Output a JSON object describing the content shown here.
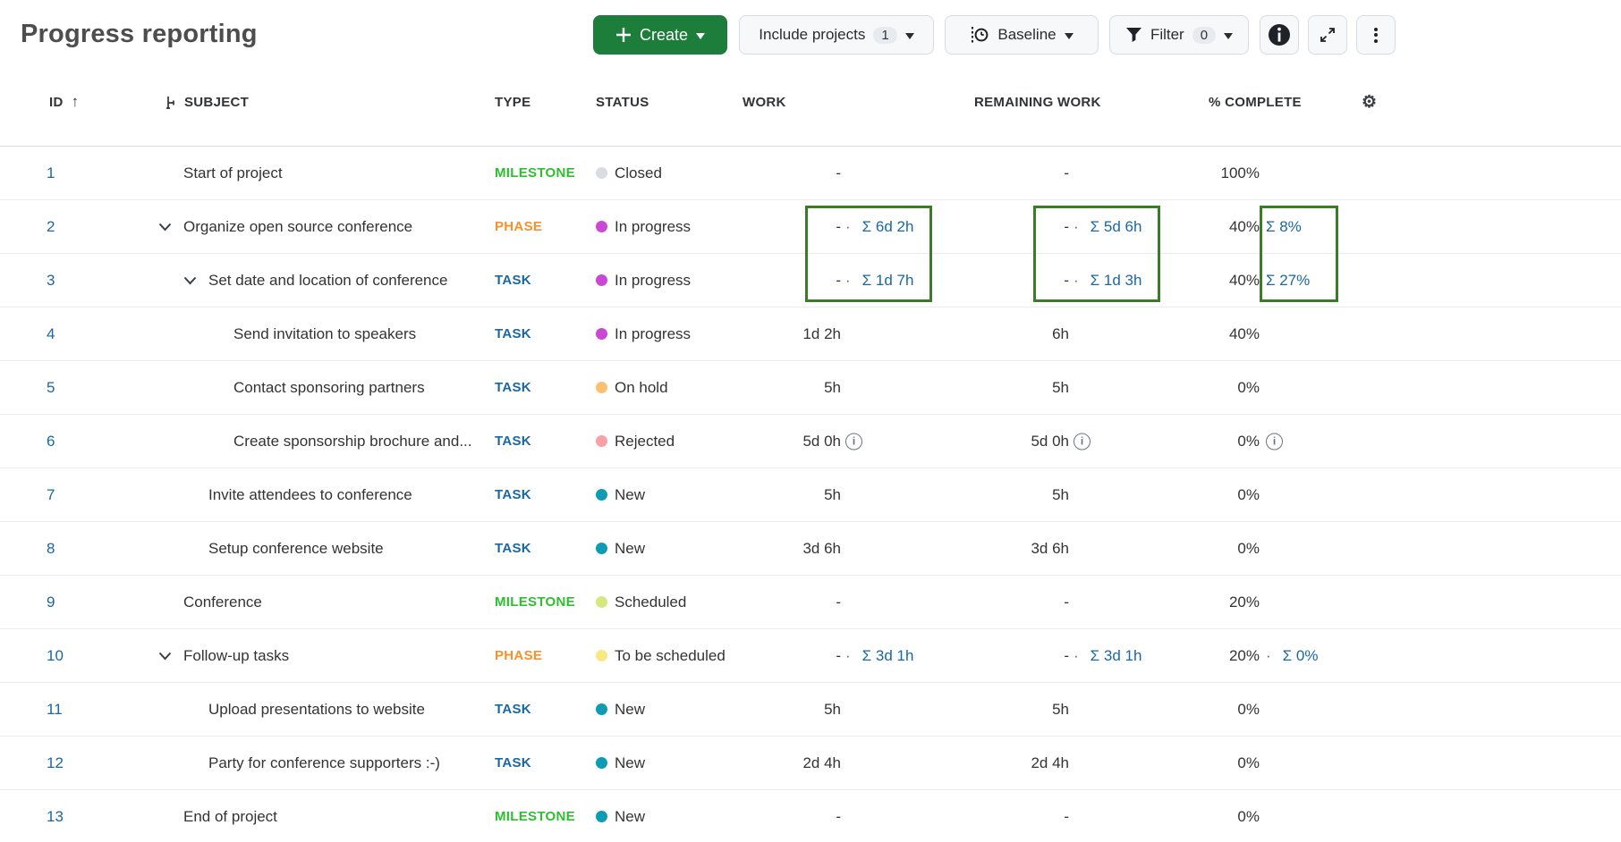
{
  "page": {
    "title": "Progress reporting"
  },
  "toolbar": {
    "create_label": "Create",
    "include_projects_label": "Include projects",
    "include_projects_badge": "1",
    "baseline_label": "Baseline",
    "filter_label": "Filter",
    "filter_badge": "0"
  },
  "table": {
    "columns": [
      "ID",
      "SUBJECT",
      "TYPE",
      "STATUS",
      "WORK",
      "REMAINING WORK",
      "% COMPLETE"
    ],
    "rows": [
      {
        "id": "1",
        "subject": "Start of project",
        "indent": 0,
        "chevron": false,
        "type": "MILESTONE",
        "type_color": "#2fbe2f",
        "status": "Closed",
        "status_color": "#d9dde2",
        "work": {
          "base": "-"
        },
        "remaining": {
          "base": "-"
        },
        "percent": {
          "base": "100%"
        }
      },
      {
        "id": "2",
        "subject": "Organize open source conference",
        "indent": 0,
        "chevron": true,
        "type": "PHASE",
        "type_color": "#f7912b",
        "status": "In progress",
        "status_color": "#cb48d6",
        "work": {
          "base": "-",
          "sep": true,
          "sum": "Σ 6d 2h"
        },
        "remaining": {
          "base": "-",
          "sep": true,
          "sum": "Σ 5d 6h"
        },
        "percent": {
          "base": "40%",
          "sep": false,
          "sum": "Σ 8%"
        }
      },
      {
        "id": "3",
        "subject": "Set date and location of conference",
        "indent": 1,
        "chevron": true,
        "type": "TASK",
        "type_color": "#1a67a3",
        "status": "In progress",
        "status_color": "#cb48d6",
        "work": {
          "base": "-",
          "sep": true,
          "sum": "Σ 1d 7h"
        },
        "remaining": {
          "base": "-",
          "sep": true,
          "sum": "Σ 1d 3h"
        },
        "percent": {
          "base": "40%",
          "sep": false,
          "sum": "Σ 27%"
        }
      },
      {
        "id": "4",
        "subject": "Send invitation to speakers",
        "indent": 2,
        "chevron": false,
        "type": "TASK",
        "type_color": "#1a67a3",
        "status": "In progress",
        "status_color": "#cb48d6",
        "work": {
          "base": "1d 2h"
        },
        "remaining": {
          "base": "6h"
        },
        "percent": {
          "base": "40%"
        }
      },
      {
        "id": "5",
        "subject": "Contact sponsoring partners",
        "indent": 2,
        "chevron": false,
        "type": "TASK",
        "type_color": "#1a67a3",
        "status": "On hold",
        "status_color": "#fbc072",
        "work": {
          "base": "5h"
        },
        "remaining": {
          "base": "5h"
        },
        "percent": {
          "base": "0%"
        }
      },
      {
        "id": "6",
        "subject": "Create sponsorship brochure and...",
        "indent": 2,
        "chevron": false,
        "type": "TASK",
        "type_color": "#1a67a3",
        "status": "Rejected",
        "status_color": "#f8a0a5",
        "work": {
          "base": "5d 0h",
          "info": true
        },
        "remaining": {
          "base": "5d 0h",
          "info": true
        },
        "percent": {
          "base": "0%",
          "info": true
        }
      },
      {
        "id": "7",
        "subject": "Invite attendees to conference",
        "indent": 1,
        "chevron": false,
        "type": "TASK",
        "type_color": "#1a67a3",
        "status": "New",
        "status_color": "#0d9cb4",
        "work": {
          "base": "5h"
        },
        "remaining": {
          "base": "5h"
        },
        "percent": {
          "base": "0%"
        }
      },
      {
        "id": "8",
        "subject": "Setup conference website",
        "indent": 1,
        "chevron": false,
        "type": "TASK",
        "type_color": "#1a67a3",
        "status": "New",
        "status_color": "#0d9cb4",
        "work": {
          "base": "3d 6h"
        },
        "remaining": {
          "base": "3d 6h"
        },
        "percent": {
          "base": "0%"
        }
      },
      {
        "id": "9",
        "subject": "Conference",
        "indent": 0,
        "chevron": false,
        "type": "MILESTONE",
        "type_color": "#2fbe2f",
        "status": "Scheduled",
        "status_color": "#d4e87e",
        "work": {
          "base": "-"
        },
        "remaining": {
          "base": "-"
        },
        "percent": {
          "base": "20%"
        }
      },
      {
        "id": "10",
        "subject": "Follow-up tasks",
        "indent": 0,
        "chevron": true,
        "type": "PHASE",
        "type_color": "#f7912b",
        "status": "To be scheduled",
        "status_color": "#f9e783",
        "work": {
          "base": "-",
          "sep": true,
          "sum": "Σ 3d 1h"
        },
        "remaining": {
          "base": "-",
          "sep": true,
          "sum": "Σ 3d 1h"
        },
        "percent": {
          "base": "20%",
          "sep": true,
          "sum": "Σ 0%"
        }
      },
      {
        "id": "11",
        "subject": "Upload presentations to website",
        "indent": 1,
        "chevron": false,
        "type": "TASK",
        "type_color": "#1a67a3",
        "status": "New",
        "status_color": "#0d9cb4",
        "work": {
          "base": "5h"
        },
        "remaining": {
          "base": "5h"
        },
        "percent": {
          "base": "0%"
        }
      },
      {
        "id": "12",
        "subject": "Party for conference supporters :-)",
        "indent": 1,
        "chevron": false,
        "type": "TASK",
        "type_color": "#1a67a3",
        "status": "New",
        "status_color": "#0d9cb4",
        "work": {
          "base": "2d 4h"
        },
        "remaining": {
          "base": "2d 4h"
        },
        "percent": {
          "base": "0%"
        }
      },
      {
        "id": "13",
        "subject": "End of project",
        "indent": 0,
        "chevron": false,
        "type": "MILESTONE",
        "type_color": "#2fbe2f",
        "status": "New",
        "status_color": "#0d9cb4",
        "work": {
          "base": "-"
        },
        "remaining": {
          "base": "-"
        },
        "percent": {
          "base": "0%"
        }
      }
    ]
  },
  "annotations": {
    "box_color": "#3b7d27",
    "boxes": [
      "work-sums-highlight",
      "remaining-work-sums-highlight",
      "percent-complete-sums-highlight"
    ]
  },
  "colors": {
    "link": "#1a67a3",
    "create_button": "#1d7d3a"
  }
}
